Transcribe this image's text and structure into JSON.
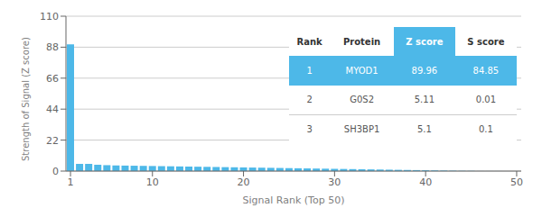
{
  "chart_data": {
    "type": "bar",
    "x": [
      1,
      2,
      3,
      4,
      5,
      6,
      7,
      8,
      9,
      10,
      11,
      12,
      13,
      14,
      15,
      16,
      17,
      18,
      19,
      20,
      21,
      22,
      23,
      24,
      25,
      26,
      27,
      28,
      29,
      30,
      31,
      32,
      33,
      34,
      35,
      36,
      37,
      38,
      39,
      40,
      41,
      42,
      43,
      44,
      45,
      46,
      47,
      48,
      49,
      50
    ],
    "values": [
      89.96,
      5.11,
      5.1,
      4.5,
      4.2,
      4.0,
      3.9,
      3.8,
      3.7,
      3.6,
      3.5,
      3.4,
      3.3,
      3.2,
      3.1,
      3.0,
      2.9,
      2.8,
      2.7,
      2.6,
      2.5,
      2.4,
      2.3,
      2.2,
      2.1,
      2.0,
      1.9,
      1.8,
      1.7,
      1.6,
      1.5,
      1.4,
      1.3,
      1.2,
      1.1,
      1.0,
      0.9,
      0.8,
      0.7,
      0.6,
      0.5,
      0.4,
      0.3,
      0.2,
      0.1,
      0.05,
      0.04,
      0.03,
      0.02,
      0.01
    ],
    "color": "#4db8e8",
    "xlabel": "Signal Rank (Top 50)",
    "ylabel": "Strength of Signal (Z score)",
    "xlim": [
      0.5,
      50.5
    ],
    "ylim": [
      0,
      110
    ],
    "yticks": [
      0,
      22,
      44,
      66,
      88,
      110
    ],
    "xticks": [
      1,
      10,
      20,
      30,
      40,
      50
    ],
    "grid": true,
    "table": {
      "headers": [
        "Rank",
        "Protein",
        "Z score",
        "S score"
      ],
      "rows": [
        [
          "1",
          "MYOD1",
          "89.96",
          "84.85"
        ],
        [
          "2",
          "G0S2",
          "5.11",
          "0.01"
        ],
        [
          "3",
          "SH3BP1",
          "5.1",
          "0.1"
        ]
      ],
      "highlight_row": 0,
      "highlight_column": 2
    }
  }
}
